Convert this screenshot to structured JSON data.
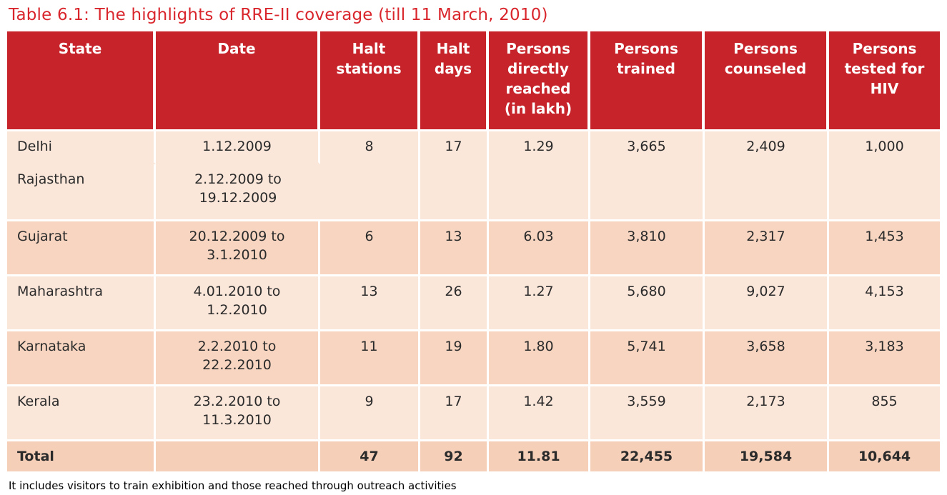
{
  "title": "Table 6.1: The highlights of RRE-II coverage (till 11 March, 2010)",
  "footnote": "It includes visitors to train exhibition and those reached through outreach activities",
  "colors": {
    "title_red": "#d9262c",
    "header_bg": "#c7232a",
    "header_text": "#ffffff",
    "row_light": "#fbe7da",
    "row_dark": "#f7d5c1",
    "total_row_bg": "#f5cfb8",
    "body_text": "#2b2b2b"
  },
  "table": {
    "columns": [
      "State",
      "Date",
      "Halt stations",
      "Halt days",
      "Persons directly reached (in lakh)",
      "Persons trained",
      "Persons counseled",
      "Persons tested for HIV"
    ],
    "rows": [
      {
        "state": "Delhi",
        "date": "1.12.2009",
        "halt_stations": "8",
        "halt_days": "17",
        "persons_reached": "1.29",
        "persons_trained": "3,665",
        "persons_counseled": "2,409",
        "persons_tested": "1,000"
      },
      {
        "state": "Rajasthan",
        "date": "2.12.2009 to 19.12.2009"
      },
      {
        "state": "Gujarat",
        "date": "20.12.2009 to 3.1.2010",
        "halt_stations": "6",
        "halt_days": "13",
        "persons_reached": "6.03",
        "persons_trained": "3,810",
        "persons_counseled": "2,317",
        "persons_tested": "1,453"
      },
      {
        "state": "Maharashtra",
        "date": "4.01.2010 to 1.2.2010",
        "halt_stations": "13",
        "halt_days": "26",
        "persons_reached": "1.27",
        "persons_trained": "5,680",
        "persons_counseled": "9,027",
        "persons_tested": "4,153"
      },
      {
        "state": "Karnataka",
        "date": "2.2.2010 to 22.2.2010",
        "halt_stations": "11",
        "halt_days": "19",
        "persons_reached": "1.80",
        "persons_trained": "5,741",
        "persons_counseled": "3,658",
        "persons_tested": "3,183"
      },
      {
        "state": "Kerala",
        "date": "23.2.2010 to 11.3.2010",
        "halt_stations": "9",
        "halt_days": "17",
        "persons_reached": "1.42",
        "persons_trained": "3,559",
        "persons_counseled": "2,173",
        "persons_tested": "855"
      }
    ],
    "total": {
      "label": "Total",
      "halt_stations": "47",
      "halt_days": "92",
      "persons_reached": "11.81",
      "persons_trained": "22,455",
      "persons_counseled": "19,584",
      "persons_tested": "10,644"
    }
  }
}
